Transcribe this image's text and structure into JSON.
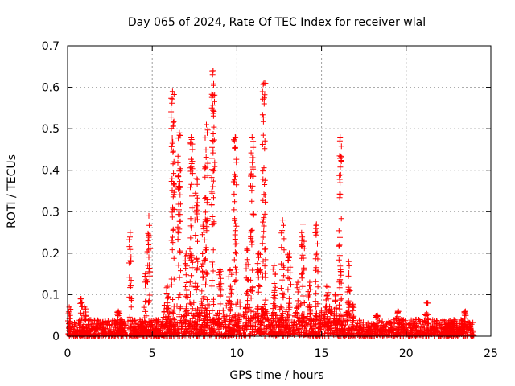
{
  "chart_data": {
    "type": "scatter",
    "title": "Day 065 of 2024, Rate Of TEC Index for receiver wlal",
    "xlabel": "GPS time / hours",
    "ylabel": "ROTI / TECUs",
    "xlim": [
      0,
      25
    ],
    "ylim": [
      0,
      0.7
    ],
    "x_ticks": [
      0,
      5,
      10,
      15,
      20,
      25
    ],
    "x_tick_labels": [
      "0",
      "5",
      "10",
      "15",
      "20",
      "25"
    ],
    "y_ticks": [
      0,
      0.1,
      0.2,
      0.3,
      0.4,
      0.5,
      0.6,
      0.7
    ],
    "y_tick_labels": [
      "0",
      "0.1",
      "0.2",
      "0.3",
      "0.4",
      "0.5",
      "0.6",
      "0.7"
    ],
    "grid": true,
    "marker": "+",
    "series": [
      {
        "name": "ROTI",
        "color": "#ff0000",
        "spikes": [
          {
            "x": 0.1,
            "peak": 0.07
          },
          {
            "x": 0.8,
            "peak": 0.09
          },
          {
            "x": 1.0,
            "peak": 0.07
          },
          {
            "x": 3.0,
            "peak": 0.06
          },
          {
            "x": 3.7,
            "peak": 0.25
          },
          {
            "x": 4.6,
            "peak": 0.15
          },
          {
            "x": 4.8,
            "peak": 0.29
          },
          {
            "x": 5.9,
            "peak": 0.12
          },
          {
            "x": 6.2,
            "peak": 0.59
          },
          {
            "x": 6.6,
            "peak": 0.49
          },
          {
            "x": 7.0,
            "peak": 0.2
          },
          {
            "x": 7.3,
            "peak": 0.48
          },
          {
            "x": 7.6,
            "peak": 0.38
          },
          {
            "x": 8.0,
            "peak": 0.27
          },
          {
            "x": 8.2,
            "peak": 0.51
          },
          {
            "x": 8.6,
            "peak": 0.64
          },
          {
            "x": 9.0,
            "peak": 0.16
          },
          {
            "x": 9.6,
            "peak": 0.16
          },
          {
            "x": 9.9,
            "peak": 0.48
          },
          {
            "x": 10.6,
            "peak": 0.21
          },
          {
            "x": 10.9,
            "peak": 0.48
          },
          {
            "x": 11.3,
            "peak": 0.2
          },
          {
            "x": 11.6,
            "peak": 0.61
          },
          {
            "x": 12.2,
            "peak": 0.17
          },
          {
            "x": 12.7,
            "peak": 0.28
          },
          {
            "x": 13.1,
            "peak": 0.2
          },
          {
            "x": 13.6,
            "peak": 0.13
          },
          {
            "x": 13.9,
            "peak": 0.27
          },
          {
            "x": 14.3,
            "peak": 0.13
          },
          {
            "x": 14.7,
            "peak": 0.27
          },
          {
            "x": 15.3,
            "peak": 0.12
          },
          {
            "x": 15.8,
            "peak": 0.1
          },
          {
            "x": 16.1,
            "peak": 0.48
          },
          {
            "x": 16.6,
            "peak": 0.18
          },
          {
            "x": 18.3,
            "peak": 0.05
          },
          {
            "x": 19.5,
            "peak": 0.06
          },
          {
            "x": 21.2,
            "peak": 0.08
          },
          {
            "x": 23.5,
            "peak": 0.06
          }
        ],
        "baseline_range": [
          0,
          0.04
        ],
        "time_range": [
          0,
          24
        ]
      }
    ]
  }
}
